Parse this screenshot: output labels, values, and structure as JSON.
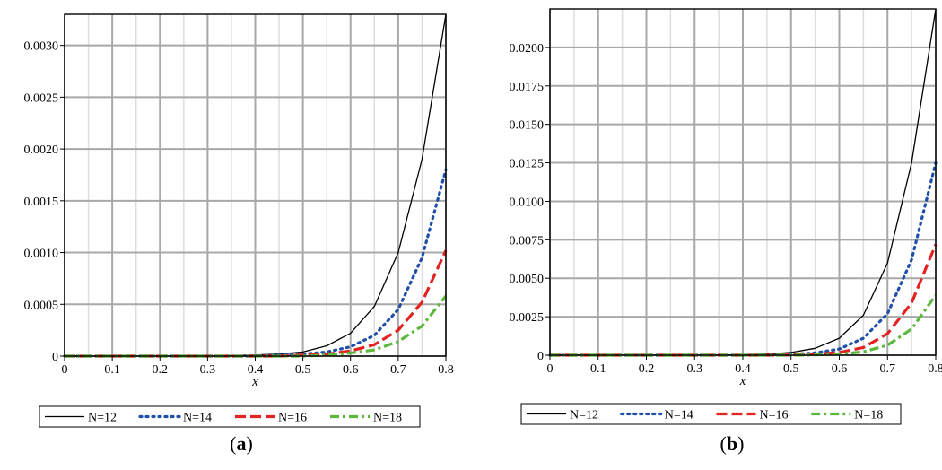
{
  "chart_data": [
    {
      "type": "line",
      "caption": "(a)",
      "caption_letter": "a",
      "xlabel": "x",
      "ylabel": "",
      "xlim": [
        0,
        0.8
      ],
      "ylim": [
        0,
        0.0033
      ],
      "xticks": [
        0,
        0.1,
        0.2,
        0.3,
        0.4,
        0.5,
        0.6,
        0.7,
        0.8
      ],
      "xtick_labels": [
        "0",
        "0.1",
        "0.2",
        "0.3",
        "0.4",
        "0.5",
        "0.6",
        "0.7",
        "0.8"
      ],
      "yticks": [
        0,
        0.0005,
        0.001,
        0.0015,
        0.002,
        0.0025,
        0.003
      ],
      "ytick_labels": [
        "0",
        "0.0005",
        "0.0010",
        "0.0015",
        "0.0020",
        "0.0025",
        "0.0030"
      ],
      "grid": true,
      "legend_position": "bottom",
      "series": [
        {
          "name": "N=12",
          "color": "#000000",
          "style": "solid",
          "x": [
            0,
            0.1,
            0.2,
            0.3,
            0.4,
            0.45,
            0.5,
            0.55,
            0.6,
            0.65,
            0.7,
            0.75,
            0.8
          ],
          "y": [
            0,
            0,
            0,
            0,
            1e-05,
            2e-05,
            4e-05,
            0.0001,
            0.00022,
            0.00048,
            0.001,
            0.0019,
            0.0033
          ]
        },
        {
          "name": "N=14",
          "color": "#1f4fa8",
          "style": "dotted",
          "x": [
            0,
            0.1,
            0.2,
            0.3,
            0.4,
            0.45,
            0.5,
            0.55,
            0.6,
            0.65,
            0.7,
            0.75,
            0.8
          ],
          "y": [
            0,
            0,
            0,
            0,
            0,
            1e-05,
            2e-05,
            4e-05,
            9e-05,
            0.0002,
            0.00045,
            0.00095,
            0.0018
          ]
        },
        {
          "name": "N=16",
          "color": "#e32222",
          "style": "dashed",
          "x": [
            0,
            0.1,
            0.2,
            0.3,
            0.4,
            0.45,
            0.5,
            0.55,
            0.6,
            0.65,
            0.7,
            0.75,
            0.8
          ],
          "y": [
            0,
            0,
            0,
            0,
            0,
            0,
            1e-05,
            2e-05,
            5e-05,
            0.00011,
            0.00025,
            0.00052,
            0.00102
          ]
        },
        {
          "name": "N=18",
          "color": "#5cb83c",
          "style": "dashdot",
          "x": [
            0,
            0.1,
            0.2,
            0.3,
            0.4,
            0.45,
            0.5,
            0.55,
            0.6,
            0.65,
            0.7,
            0.75,
            0.8
          ],
          "y": [
            0,
            0,
            0,
            0,
            0,
            0,
            0,
            1e-05,
            3e-05,
            6e-05,
            0.00014,
            0.00029,
            0.00058
          ]
        }
      ]
    },
    {
      "type": "line",
      "caption": "(b)",
      "caption_letter": "b",
      "xlabel": "x",
      "ylabel": "",
      "xlim": [
        0,
        0.8
      ],
      "ylim": [
        0,
        0.0225
      ],
      "xticks": [
        0,
        0.1,
        0.2,
        0.3,
        0.4,
        0.5,
        0.6,
        0.7,
        0.8
      ],
      "xtick_labels": [
        "0",
        "0.1",
        "0.2",
        "0.3",
        "0.4",
        "0.5",
        "0.6",
        "0.7",
        "0.8"
      ],
      "yticks": [
        0,
        0.0025,
        0.005,
        0.0075,
        0.01,
        0.0125,
        0.015,
        0.0175,
        0.02
      ],
      "ytick_labels": [
        "0",
        "0.0025",
        "0.0050",
        "0.0075",
        "0.0100",
        "0.0125",
        "0.0150",
        "0.0175",
        "0.0200"
      ],
      "grid": true,
      "legend_position": "bottom",
      "series": [
        {
          "name": "N=12",
          "color": "#000000",
          "style": "solid",
          "x": [
            0,
            0.1,
            0.2,
            0.3,
            0.4,
            0.45,
            0.5,
            0.55,
            0.6,
            0.65,
            0.7,
            0.75,
            0.8
          ],
          "y": [
            0,
            0,
            0,
            0,
            3e-05,
            8e-05,
            0.00018,
            0.00045,
            0.0011,
            0.0026,
            0.006,
            0.0125,
            0.0225
          ]
        },
        {
          "name": "N=14",
          "color": "#1f4fa8",
          "style": "dotted",
          "x": [
            0,
            0.1,
            0.2,
            0.3,
            0.4,
            0.45,
            0.5,
            0.55,
            0.6,
            0.65,
            0.7,
            0.75,
            0.8
          ],
          "y": [
            0,
            0,
            0,
            0,
            0,
            2e-05,
            5e-05,
            0.00015,
            0.0004,
            0.0011,
            0.0027,
            0.0062,
            0.0125
          ]
        },
        {
          "name": "N=16",
          "color": "#e32222",
          "style": "dashed",
          "x": [
            0,
            0.1,
            0.2,
            0.3,
            0.4,
            0.45,
            0.5,
            0.55,
            0.6,
            0.65,
            0.7,
            0.75,
            0.8
          ],
          "y": [
            0,
            0,
            0,
            0,
            0,
            0,
            2e-05,
            6e-05,
            0.00018,
            0.0005,
            0.0014,
            0.0034,
            0.0072
          ]
        },
        {
          "name": "N=18",
          "color": "#5cb83c",
          "style": "dashdot",
          "x": [
            0,
            0.1,
            0.2,
            0.3,
            0.4,
            0.45,
            0.5,
            0.55,
            0.6,
            0.65,
            0.7,
            0.75,
            0.8
          ],
          "y": [
            0,
            0,
            0,
            0,
            0,
            0,
            0,
            2e-05,
            7e-05,
            0.00022,
            0.00065,
            0.0017,
            0.0039
          ]
        }
      ]
    }
  ]
}
